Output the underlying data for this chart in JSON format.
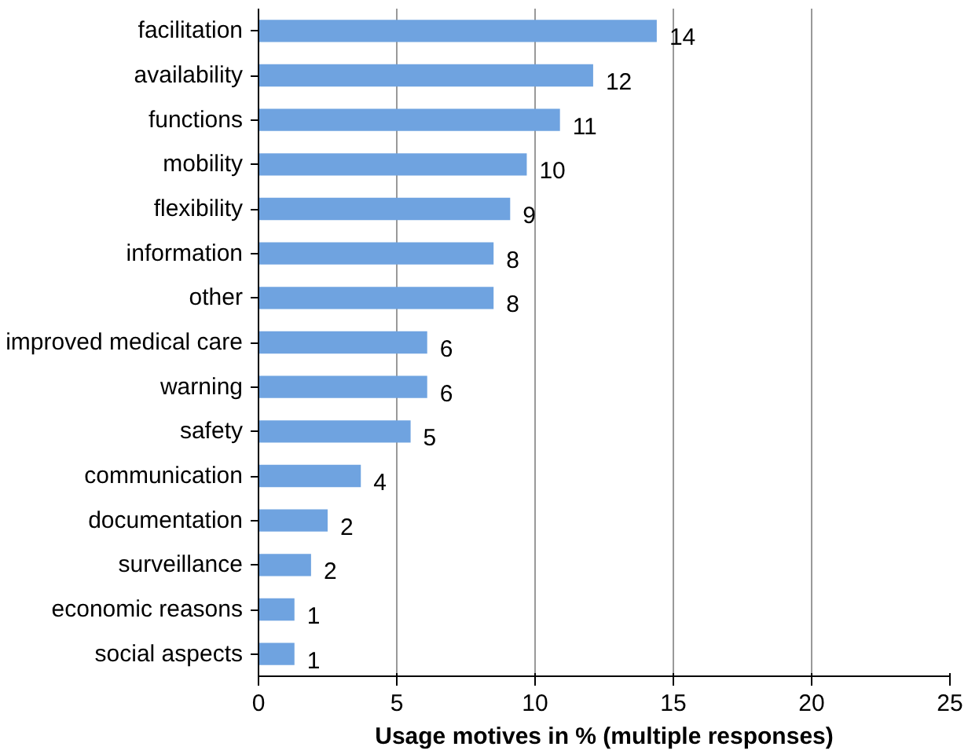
{
  "chart_data": {
    "type": "bar",
    "orientation": "horizontal",
    "xlabel": "Usage motives in % (multiple responses)",
    "categories": [
      "facilitation",
      "availability",
      "functions",
      "mobility",
      "flexibility",
      "information",
      "other",
      "improved medical care",
      "warning",
      "safety",
      "communication",
      "documentation",
      "surveillance",
      "economic reasons",
      "social aspects"
    ],
    "values": [
      14.4,
      12.1,
      10.9,
      9.7,
      9.1,
      8.5,
      8.5,
      6.1,
      6.1,
      5.5,
      3.7,
      2.5,
      1.9,
      1.3,
      1.3
    ],
    "value_labels": [
      "14",
      "12",
      "11",
      "10",
      "9",
      "8",
      "8",
      "6",
      "6",
      "5",
      "4",
      "2",
      "2",
      "1",
      "1"
    ],
    "color": "#6fa3e0",
    "xlim": [
      0,
      25
    ],
    "xticks": [
      0,
      5,
      10,
      15,
      20,
      25
    ],
    "grid": "x"
  }
}
